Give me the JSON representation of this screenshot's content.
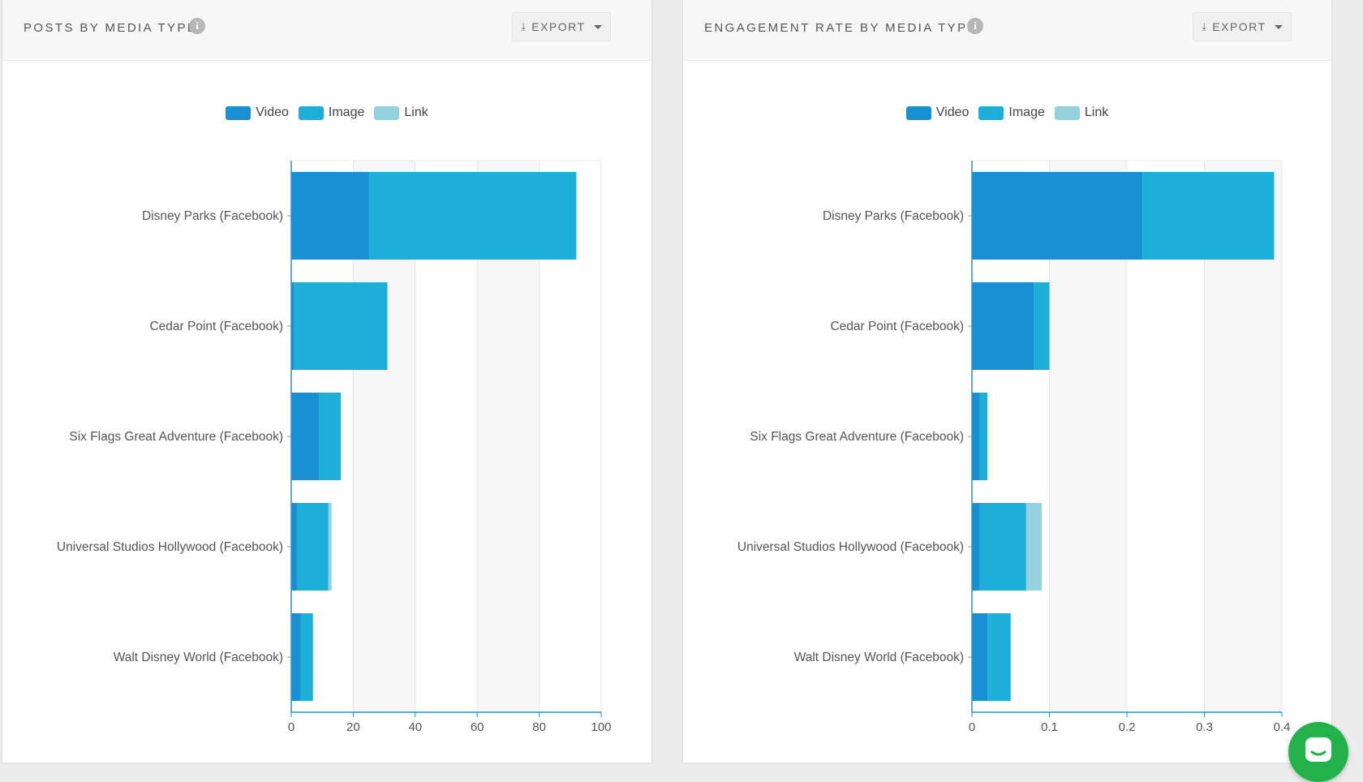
{
  "colors": {
    "video": "#1890d1",
    "image": "#1cb0d8",
    "link": "#94d0de",
    "grid": "#e8e8e8",
    "band": "#f6f6f6",
    "axis": "#2a8fd6"
  },
  "panels": [
    {
      "title": "POSTS BY MEDIA TYPE",
      "export_label": "EXPORT",
      "info_icon": "info-icon",
      "legend": [
        {
          "key": "video",
          "label": "Video"
        },
        {
          "key": "image",
          "label": "Image"
        },
        {
          "key": "link",
          "label": "Link"
        }
      ]
    },
    {
      "title": "ENGAGEMENT RATE BY MEDIA TYPE",
      "export_label": "EXPORT",
      "info_icon": "info-icon",
      "legend": [
        {
          "key": "video",
          "label": "Video"
        },
        {
          "key": "image",
          "label": "Image"
        },
        {
          "key": "link",
          "label": "Link"
        }
      ]
    }
  ],
  "chart_data": [
    {
      "type": "bar",
      "orientation": "horizontal",
      "stacked": true,
      "title": "POSTS BY MEDIA TYPE",
      "categories": [
        "Disney Parks (Facebook)",
        "Cedar Point (Facebook)",
        "Six Flags Great Adventure (Facebook)",
        "Universal Studios Hollywood (Facebook)",
        "Walt Disney World (Facebook)"
      ],
      "series": [
        {
          "name": "Video",
          "values": [
            25,
            1,
            9,
            2,
            3
          ]
        },
        {
          "name": "Image",
          "values": [
            67,
            30,
            7,
            10,
            4
          ]
        },
        {
          "name": "Link",
          "values": [
            0,
            0,
            0,
            1,
            0
          ]
        }
      ],
      "xlim": [
        0,
        100
      ],
      "xticks": [
        0,
        20,
        40,
        60,
        80,
        100
      ],
      "xtick_labels": [
        "0",
        "20",
        "40",
        "60",
        "80",
        "100"
      ],
      "legend_position": "top",
      "grid": true
    },
    {
      "type": "bar",
      "orientation": "horizontal",
      "stacked": true,
      "title": "ENGAGEMENT RATE BY MEDIA TYPE",
      "categories": [
        "Disney Parks (Facebook)",
        "Cedar Point (Facebook)",
        "Six Flags Great Adventure (Facebook)",
        "Universal Studios Hollywood (Facebook)",
        "Walt Disney World (Facebook)"
      ],
      "series": [
        {
          "name": "Video",
          "values": [
            0.22,
            0.08,
            0.01,
            0.01,
            0.02
          ]
        },
        {
          "name": "Image",
          "values": [
            0.17,
            0.02,
            0.01,
            0.06,
            0.03
          ]
        },
        {
          "name": "Link",
          "values": [
            0,
            0,
            0,
            0.02,
            0
          ]
        }
      ],
      "xlim": [
        0,
        0.4
      ],
      "xticks": [
        0,
        0.1,
        0.2,
        0.3,
        0.4
      ],
      "xtick_labels": [
        "0",
        "0.1",
        "0.2",
        "0.3",
        "0.4"
      ],
      "legend_position": "top",
      "grid": true
    }
  ],
  "chat": {
    "icon": "chat-icon"
  }
}
